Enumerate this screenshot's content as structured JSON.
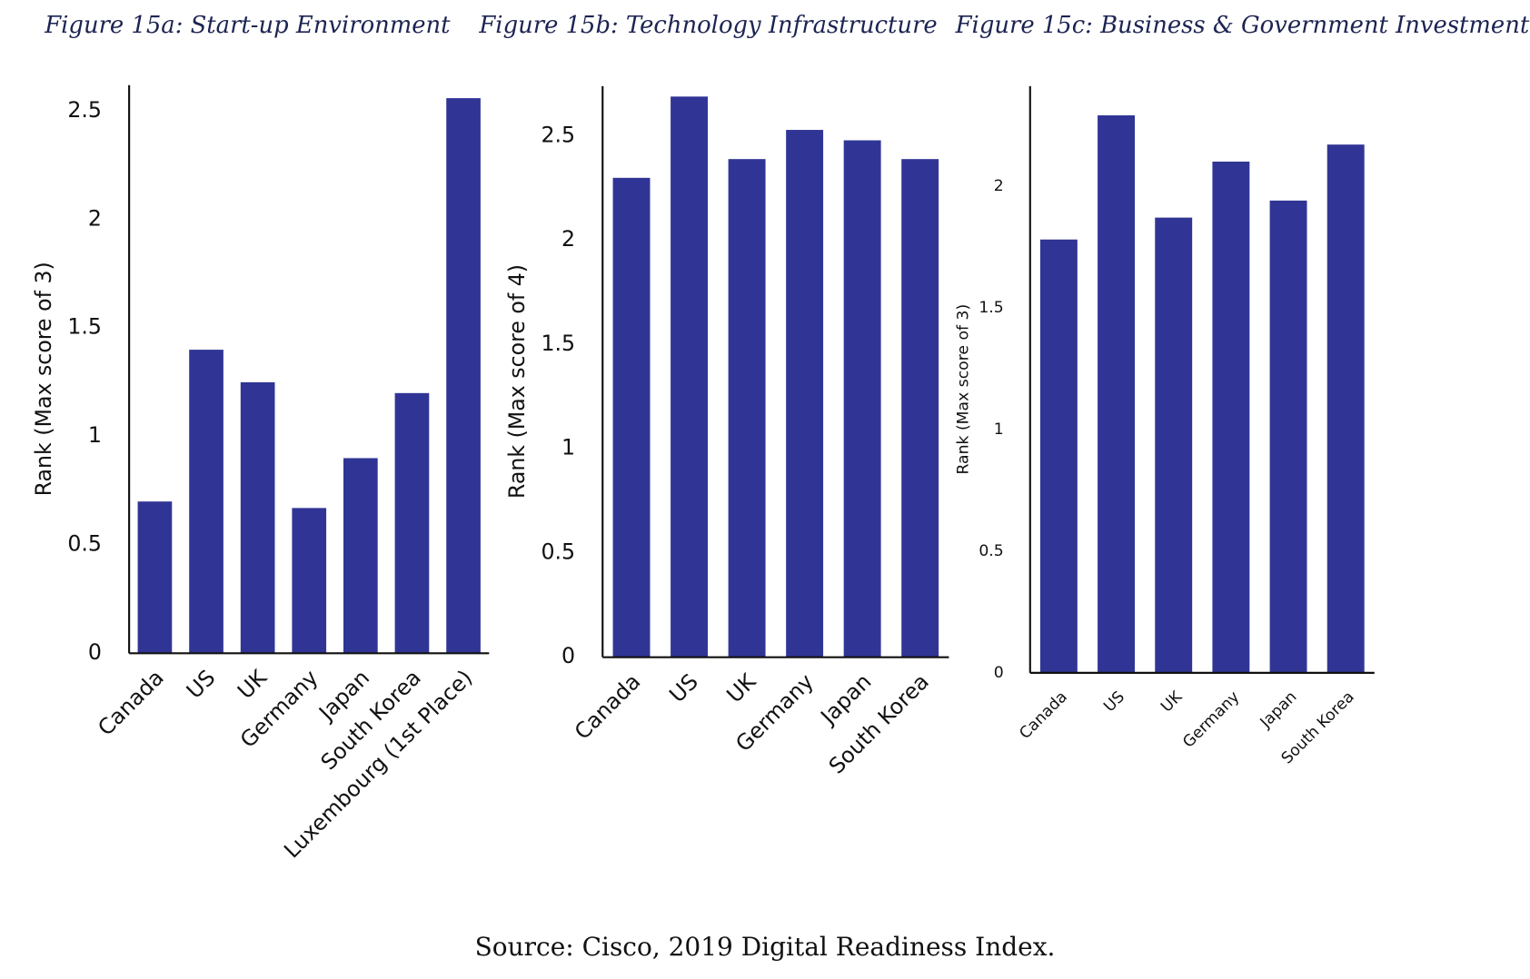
{
  "chart_data": [
    {
      "type": "bar",
      "title": "Figure 15a: Start-up Environment",
      "y_label": "Rank (Max score of 3)",
      "categories": [
        "Canada",
        "US",
        "UK",
        "Germany",
        "Japan",
        "South Korea",
        "Luxembourg (1st Place)"
      ],
      "values": [
        0.7,
        1.4,
        1.25,
        0.67,
        0.9,
        1.2,
        2.56
      ],
      "color": "#303595",
      "ylim": [
        0,
        2.62
      ],
      "yticks": [
        0,
        0.5,
        1,
        1.5,
        2,
        2.5
      ],
      "grid": false
    },
    {
      "type": "bar",
      "title": "Figure 15b: Technology Infrastructure",
      "y_label": "Rank (Max score of 4)",
      "categories": [
        "Canada",
        "US",
        "UK",
        "Germany",
        "Japan",
        "South Korea"
      ],
      "values": [
        2.3,
        2.69,
        2.39,
        2.53,
        2.48,
        2.39
      ],
      "color": "#303595",
      "ylim": [
        0,
        2.74
      ],
      "yticks": [
        0,
        0.5,
        1,
        1.5,
        2,
        2.5
      ],
      "grid": false
    },
    {
      "type": "bar",
      "title": "Figure 15c: Business & Government Investment",
      "y_label": "Rank (Max score of 3)",
      "categories": [
        "Canada",
        "US",
        "UK",
        "Germany",
        "Japan",
        "South Korea"
      ],
      "values": [
        1.78,
        2.29,
        1.87,
        2.1,
        1.94,
        2.17
      ],
      "color": "#303595",
      "ylim": [
        0,
        2.41
      ],
      "yticks": [
        0,
        0.5,
        1,
        1.5,
        2
      ],
      "grid": false
    }
  ],
  "source": "Source: Cisco, 2019 Digital Readiness Index."
}
